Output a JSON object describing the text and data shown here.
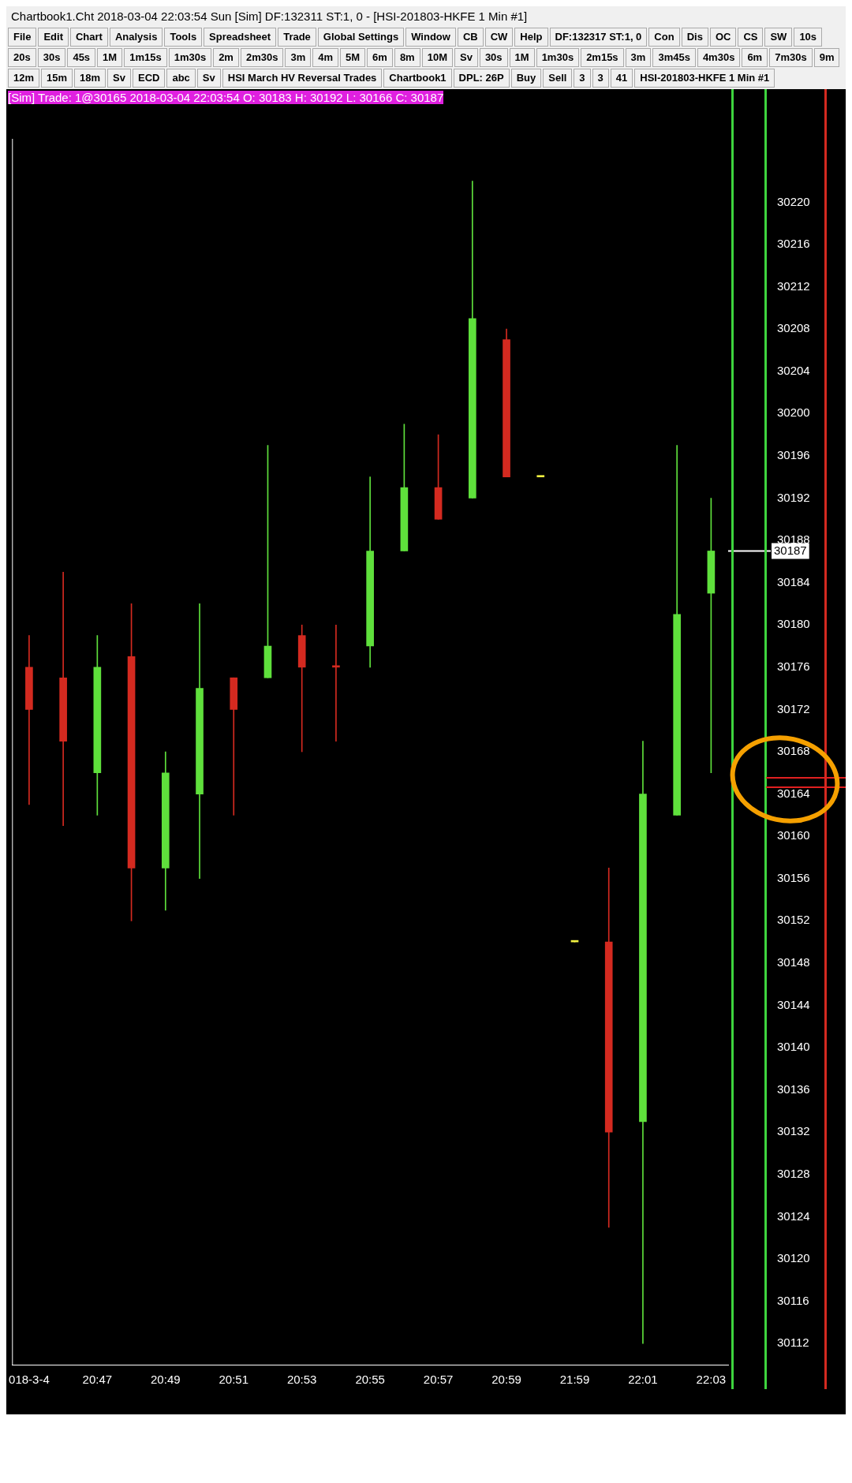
{
  "chart_data": {
    "type": "candlestick",
    "title": "Chartbook1.Cht  2018-03-04  22:03:54 Sun [Sim]  DF:132311  ST:1, 0 - [HSI-201803-HKFE  1 Min  #1]",
    "subtitle": "[Sim]  Trade: 1@30165  2018-03-04 22:03:54  O: 30183  H: 30192  L: 30166  C: 30187",
    "categories": [
      "018-3-4",
      null,
      "20:47",
      null,
      "20:49",
      null,
      "20:51",
      null,
      "20:53",
      null,
      "20:55",
      null,
      "20:57",
      null,
      "20:59",
      null,
      "21:59",
      null,
      "22:01",
      null,
      "22:03"
    ],
    "ohlc": [
      [
        30176,
        30179,
        30163,
        30172
      ],
      [
        30175,
        30185,
        30161,
        30169
      ],
      [
        30166,
        30179,
        30162,
        30176
      ],
      [
        30177,
        30182,
        30152,
        30157
      ],
      [
        30157,
        30168,
        30153,
        30166
      ],
      [
        30164,
        30182,
        30156,
        30174
      ],
      [
        30175,
        30175,
        30162,
        30172
      ],
      [
        30175,
        30197,
        30175,
        30178
      ],
      [
        30179,
        30180,
        30168,
        30176
      ],
      [
        30176,
        30180,
        30169,
        30176
      ],
      [
        30178,
        30194,
        30176,
        30187
      ],
      [
        30187,
        30199,
        30187,
        30193
      ],
      [
        30193,
        30198,
        30190,
        30190
      ],
      [
        30192,
        30222,
        30192,
        30209
      ],
      [
        30207,
        30208,
        30194,
        30194
      ],
      [
        30194,
        30194,
        30194,
        30194
      ],
      [
        30150,
        30150,
        30150,
        30150
      ],
      [
        30150,
        30157,
        30123,
        30132
      ],
      [
        30133,
        30169,
        30112,
        30164
      ],
      [
        30162,
        30197,
        30162,
        30181
      ],
      [
        30183,
        30192,
        30166,
        30187
      ]
    ],
    "colors": [
      "#d42a20",
      "#d42a20",
      "#5fe03c",
      "#d42a20",
      "#5fe03c",
      "#5fe03c",
      "#d42a20",
      "#5fe03c",
      "#d42a20",
      "#d42a20",
      "#5fe03c",
      "#5fe03c",
      "#d42a20",
      "#5fe03c",
      "#d42a20",
      "#f0f040",
      "#f0f040",
      "#d42a20",
      "#5fe03c",
      "#5fe03c",
      "#5fe03c"
    ],
    "ylim": [
      30110,
      30226
    ],
    "yticks": [
      30112,
      30116,
      30120,
      30124,
      30128,
      30132,
      30136,
      30140,
      30144,
      30148,
      30152,
      30156,
      30160,
      30164,
      30168,
      30172,
      30176,
      30180,
      30184,
      30188,
      30192,
      30196,
      30200,
      30204,
      30208,
      30212,
      30216,
      30220
    ],
    "ref_lines": [
      {
        "axis": "y",
        "value": 30187,
        "label": "30187",
        "color": "#ffffff"
      }
    ],
    "legend": false,
    "grid": false,
    "annotations": [
      "File",
      "Edit",
      "Chart",
      "Analysis",
      "Tools",
      "Spreadsheet",
      "Trade",
      "Global Settings",
      "Window",
      "CB",
      "CW",
      "Help",
      "DF:132317  ST:1, 0",
      "Con",
      "Dis",
      "OC",
      "CS",
      "SW",
      "10s",
      "20s",
      "30s",
      "45s",
      "1M",
      "1m15s",
      "1m30s",
      "2m",
      "2m30s",
      "3m",
      "4m",
      "5M",
      "6m",
      "8m",
      "10M",
      "Sv",
      "30s",
      "1M",
      "1m30s",
      "2m15s",
      "3m",
      "3m45s",
      "4m30s",
      "6m",
      "7m30s",
      "9m",
      "12m",
      "15m",
      "18m",
      "Sv",
      "ECD",
      "abc",
      "Sv",
      "HSI March HV Reversal Trades",
      "Chartbook1",
      "DPL: 26P",
      "Buy",
      "Sell",
      "3",
      "3",
      "41",
      "HSI-201803-HKFE  1 Min  #1"
    ]
  }
}
